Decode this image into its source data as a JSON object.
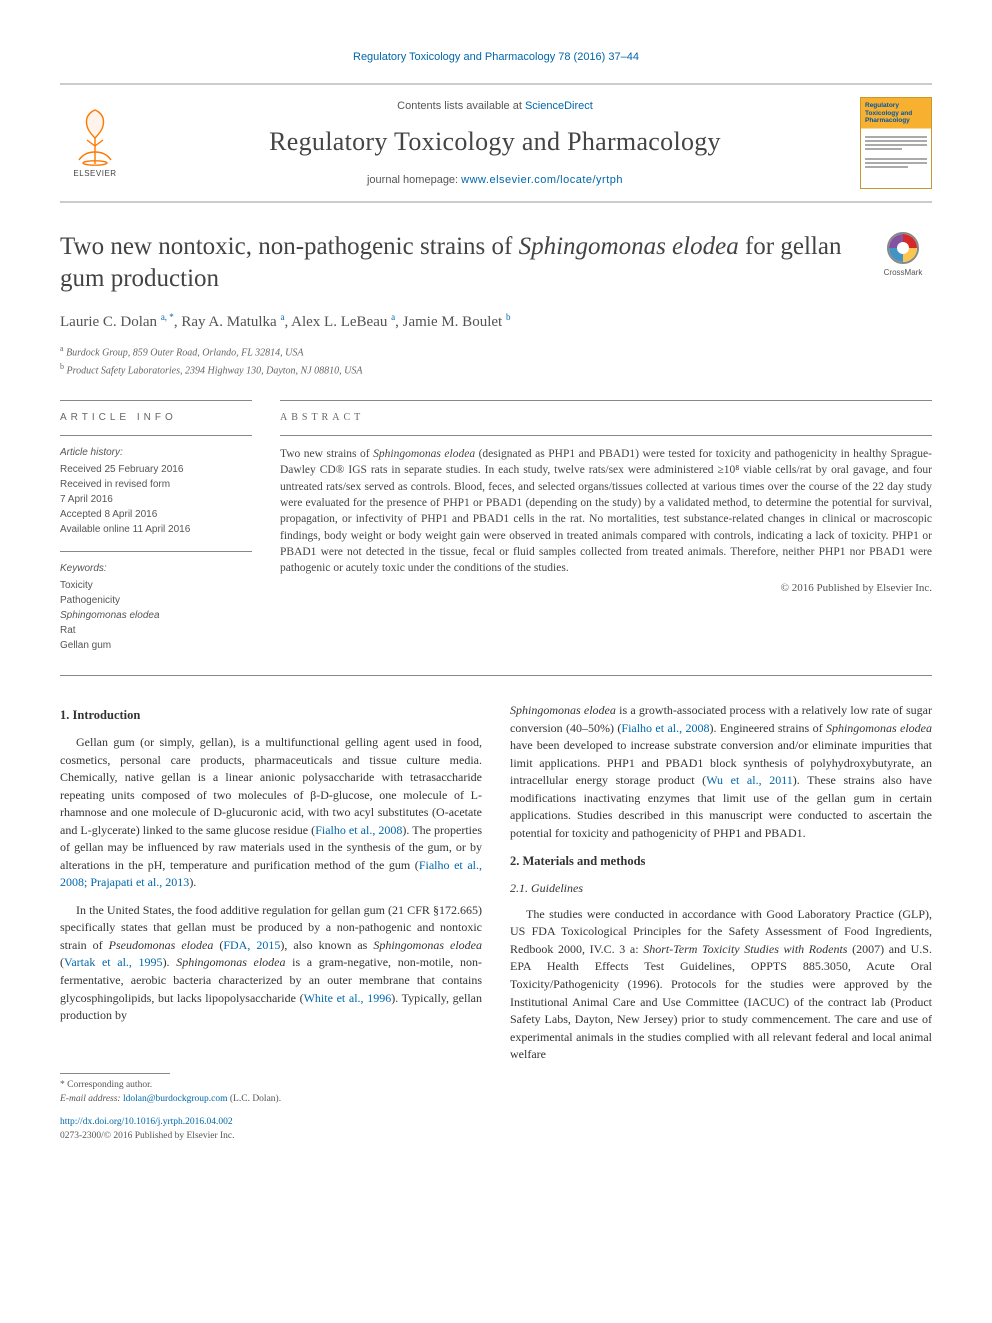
{
  "running_header": "Regulatory Toxicology and Pharmacology 78 (2016) 37–44",
  "masthead": {
    "contents_prefix": "Contents lists available at ",
    "contents_link": "ScienceDirect",
    "journal_name": "Regulatory Toxicology and Pharmacology",
    "homepage_prefix": "journal homepage: ",
    "homepage_url": "www.elsevier.com/locate/yrtph",
    "elsevier_wordmark": "ELSEVIER",
    "cover_title": "Regulatory Toxicology and Pharmacology"
  },
  "title_pre": "Two new nontoxic, non-pathogenic strains of ",
  "title_em": "Sphingomonas elodea",
  "title_post": " for gellan gum production",
  "crossmark_label": "CrossMark",
  "authors_html": "Laurie C. Dolan <sup>a, *</sup>, Ray A. Matulka <sup>a</sup>, Alex L. LeBeau <sup>a</sup>, Jamie M. Boulet <sup>b</sup>",
  "affiliations": {
    "a": "Burdock Group, 859 Outer Road, Orlando, FL 32814, USA",
    "b": "Product Safety Laboratories, 2394 Highway 130, Dayton, NJ 08810, USA"
  },
  "article_info": {
    "heading": "ARTICLE INFO",
    "history_label": "Article history:",
    "history": "Received 25 February 2016\nReceived in revised form\n7 April 2016\nAccepted 8 April 2016\nAvailable online 11 April 2016",
    "keywords_label": "Keywords:",
    "keywords": [
      "Toxicity",
      "Pathogenicity",
      "Sphingomonas elodea",
      "Rat",
      "Gellan gum"
    ]
  },
  "abstract": {
    "heading": "ABSTRACT",
    "text_1": "Two new strains of ",
    "text_em1": "Sphingomonas elodea",
    "text_2": " (designated as PHP1 and PBAD1) were tested for toxicity and pathogenicity in healthy Sprague-Dawley CD® IGS rats in separate studies. In each study, twelve rats/sex were administered ≥10⁸ viable cells/rat by oral gavage, and four untreated rats/sex served as controls. Blood, feces, and selected organs/tissues collected at various times over the course of the 22 day study were evaluated for the presence of PHP1 or PBAD1 (depending on the study) by a validated method, to determine the potential for survival, propagation, or infectivity of PHP1 and PBAD1 cells in the rat. No mortalities, test substance-related changes in clinical or macroscopic findings, body weight or body weight gain were observed in treated animals compared with controls, indicating a lack of toxicity. PHP1 or PBAD1 were not detected in the tissue, fecal or fluid samples collected from treated animals. Therefore, neither PHP1 nor PBAD1 were pathogenic or acutely toxic under the conditions of the studies.",
    "copyright": "© 2016 Published by Elsevier Inc."
  },
  "sections": {
    "intro_heading": "1. Introduction",
    "intro_p1_a": "Gellan gum (or simply, gellan), is a multifunctional gelling agent used in food, cosmetics, personal care products, pharmaceuticals and tissue culture media. Chemically, native gellan is a linear anionic polysaccharide with tetrasaccharide repeating units composed of two molecules of β-D-glucose, one molecule of L-rhamnose and one molecule of D-glucuronic acid, with two acyl substitutes (O-acetate and L-glycerate) linked to the same glucose residue (",
    "intro_p1_ref1": "Fialho et al., 2008",
    "intro_p1_b": "). The properties of gellan may be influenced by raw materials used in the synthesis of the gum, or by alterations in the pH, temperature and purification method of the gum (",
    "intro_p1_ref2": "Fialho et al., 2008; Prajapati et al., 2013",
    "intro_p1_c": ").",
    "intro_p2_a": "In the United States, the food additive regulation for gellan gum (21 CFR §172.665) specifically states that gellan must be produced by a non-pathogenic and nontoxic strain of ",
    "intro_p2_em1": "Pseudomonas elodea",
    "intro_p2_b": " (",
    "intro_p2_ref1": "FDA, 2015",
    "intro_p2_c": "), also known as ",
    "intro_p2_em2": "Sphingomonas elodea",
    "intro_p2_d": " (",
    "intro_p2_ref2": "Vartak et al., 1995",
    "intro_p2_e": "). ",
    "intro_p2_em3": "Sphingomonas elodea",
    "intro_p2_f": " is a gram-negative, non-motile, non-fermentative, aerobic bacteria characterized by an outer membrane that contains glycosphingolipids, but lacks lipopolysaccharide (",
    "intro_p2_ref3": "White et al., 1996",
    "intro_p2_g": "). Typically, gellan production by ",
    "col2_p1_em1": "Sphingomonas elodea",
    "col2_p1_a": " is a growth-associated process with a relatively low rate of sugar conversion (40–50%) (",
    "col2_p1_ref1": "Fialho et al., 2008",
    "col2_p1_b": "). Engineered strains of ",
    "col2_p1_em2": "Sphingomonas elodea",
    "col2_p1_c": " have been developed to increase substrate conversion and/or eliminate impurities that limit applications. PHP1 and PBAD1 block synthesis of polyhydroxybutyrate, an intracellular energy storage product (",
    "col2_p1_ref2": "Wu et al., 2011",
    "col2_p1_d": "). These strains also have modifications inactivating enzymes that limit use of the gellan gum in certain applications. Studies described in this manuscript were conducted to ascertain the potential for toxicity and pathogenicity of PHP1 and PBAD1.",
    "methods_heading": "2. Materials and methods",
    "guidelines_heading": "2.1. Guidelines",
    "guidelines_p_a": "The studies were conducted in accordance with Good Laboratory Practice (GLP), US FDA Toxicological Principles for the Safety Assessment of Food Ingredients, Redbook 2000, IV.C. 3 a: ",
    "guidelines_p_em": "Short-Term Toxicity Studies with Rodents",
    "guidelines_p_b": " (2007) and U.S. EPA Health Effects Test Guidelines, OPPTS 885.3050, Acute Oral Toxicity/Pathogenicity (1996). Protocols for the studies were approved by the Institutional Animal Care and Use Committee (IACUC) of the contract lab (Product Safety Labs, Dayton, New Jersey) prior to study commencement. The care and use of experimental animals in the studies complied with all relevant federal and local animal welfare"
  },
  "footnote": {
    "corr": "* Corresponding author.",
    "email_label": "E-mail address: ",
    "email": "ldolan@burdockgroup.com",
    "email_who": " (L.C. Dolan)."
  },
  "footer": {
    "doi": "http://dx.doi.org/10.1016/j.yrtph.2016.04.002",
    "issn_line": "0273-2300/© 2016 Published by Elsevier Inc."
  },
  "colors": {
    "link": "#0066aa",
    "orange": "#ff7700",
    "cover_yellow": "#f8b030"
  }
}
